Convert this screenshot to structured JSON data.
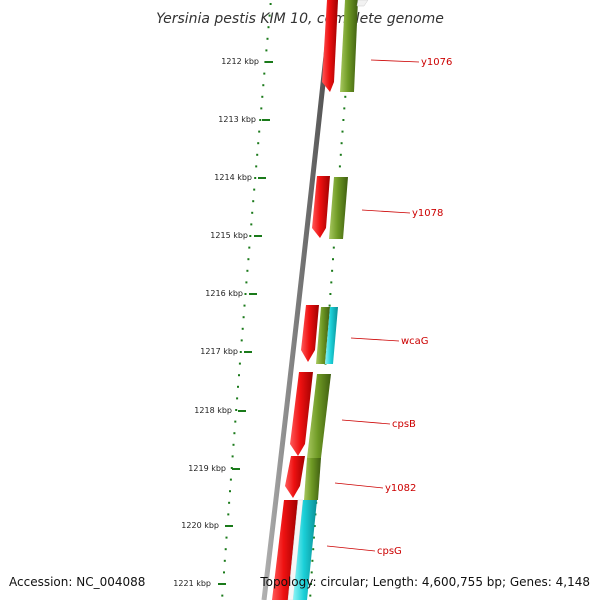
{
  "title": "Yersinia pestis KIM 10, complete genome",
  "footer": {
    "accession": "Accession: NC_004088",
    "topology": "Topology: circular; Length: 4,600,755 bp; Genes: 4,148"
  },
  "colors": {
    "label": "#cc0000",
    "backbone": "#7a7a7a",
    "tick": "#1a7a1a",
    "reverse_gene": "#ee1111",
    "forward_gene": "#6f9a25",
    "cyan_gene": "#1bd0d8"
  },
  "ruler": {
    "labels": [
      "1212 kbp",
      "1213 kbp",
      "1214 kbp",
      "1215 kbp",
      "1216 kbp",
      "1217 kbp",
      "1218 kbp",
      "1219 kbp",
      "1220 kbp",
      "1221 kbp"
    ]
  },
  "gene_labels": [
    {
      "name": "y1076"
    },
    {
      "name": "y1078"
    },
    {
      "name": "wcaG"
    },
    {
      "name": "cpsB"
    },
    {
      "name": "y1082"
    },
    {
      "name": "cpsG"
    }
  ]
}
